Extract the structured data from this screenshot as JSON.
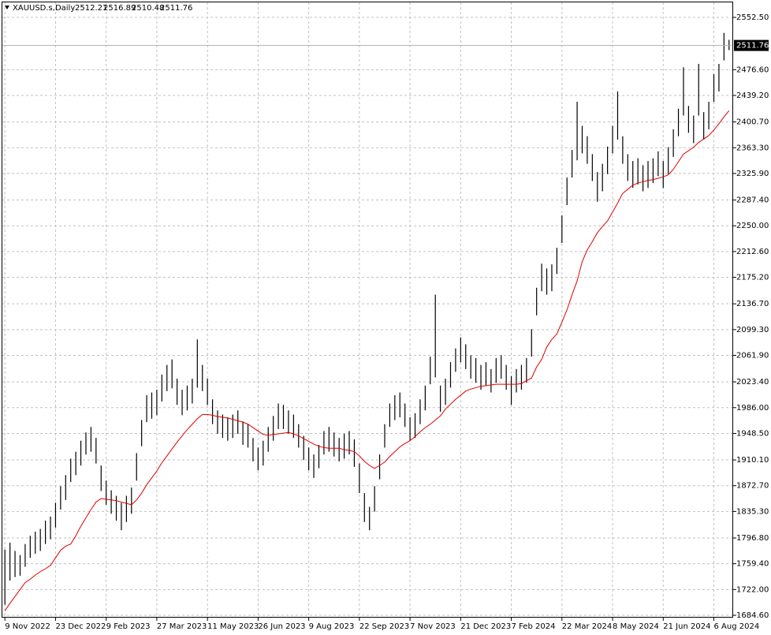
{
  "chart_data": {
    "type": "ohlc",
    "symbol": "XAUUSD.s,Daily",
    "ohlc": [
      2512.21,
      2516.89,
      2510.48,
      2511.76
    ],
    "current_price": 2511.76,
    "categories": [
      "9 Nov 2022",
      null,
      null,
      null,
      null,
      null,
      null,
      null,
      null,
      null,
      "23 Dec 2022",
      null,
      null,
      null,
      null,
      null,
      null,
      null,
      null,
      null,
      "9 Feb 2023",
      null,
      null,
      null,
      null,
      null,
      null,
      null,
      null,
      null,
      "27 Mar 2023",
      null,
      null,
      null,
      null,
      null,
      null,
      null,
      null,
      null,
      "11 May 2023",
      null,
      null,
      null,
      null,
      null,
      null,
      null,
      null,
      null,
      "26 Jun 2023",
      null,
      null,
      null,
      null,
      null,
      null,
      null,
      null,
      null,
      "9 Aug 2023",
      null,
      null,
      null,
      null,
      null,
      null,
      null,
      null,
      null,
      "22 Sep 2023",
      null,
      null,
      null,
      null,
      null,
      null,
      null,
      null,
      null,
      "7 Nov 2023",
      null,
      null,
      null,
      null,
      null,
      null,
      null,
      null,
      null,
      "21 Dec 2023",
      null,
      null,
      null,
      null,
      null,
      null,
      null,
      null,
      null,
      "7 Feb 2024",
      null,
      null,
      null,
      null,
      null,
      null,
      null,
      null,
      null,
      "22 Mar 2024",
      null,
      null,
      null,
      null,
      null,
      null,
      null,
      null,
      null,
      "8 May 2024",
      null,
      null,
      null,
      null,
      null,
      null,
      null,
      null,
      null,
      "21 Jun 2024",
      null,
      null,
      null,
      null,
      null,
      null,
      null,
      null,
      null,
      "6 Aug 2024",
      null,
      null,
      null
    ],
    "high": [
      1780,
      1790,
      1778,
      1772,
      1788,
      1800,
      1806,
      1810,
      1822,
      1828,
      1848,
      1872,
      1888,
      1912,
      1922,
      1938,
      1950,
      1958,
      1942,
      1902,
      1880,
      1866,
      1858,
      1848,
      1858,
      1870,
      1920,
      1968,
      2004,
      2008,
      2012,
      2034,
      2048,
      2056,
      2028,
      2012,
      2018,
      2028,
      2085,
      2048,
      2028,
      1998,
      1982,
      1976,
      1972,
      1976,
      1982,
      1966,
      1962,
      1942,
      1928,
      1938,
      1958,
      1974,
      1992,
      1990,
      1982,
      1976,
      1962,
      1945,
      1928,
      1918,
      1932,
      1952,
      1958,
      1950,
      1942,
      1948,
      1952,
      1940,
      1905,
      1862,
      1842,
      1872,
      1918,
      1962,
      1992,
      2004,
      2008,
      1992,
      1972,
      1978,
      1998,
      2018,
      2060,
      2150,
      2018,
      2028,
      2052,
      2072,
      2088,
      2078,
      2062,
      2058,
      2048,
      2052,
      2042,
      2058,
      2062,
      2048,
      2032,
      2042,
      2048,
      2058,
      2100,
      2160,
      2195,
      2188,
      2194,
      2218,
      2265,
      2320,
      2360,
      2430,
      2395,
      2380,
      2354,
      2328,
      2340,
      2365,
      2395,
      2445,
      2380,
      2354,
      2344,
      2348,
      2338,
      2344,
      2348,
      2358,
      2344,
      2364,
      2390,
      2420,
      2480,
      2424,
      2410,
      2485,
      2415,
      2430,
      2470,
      2485,
      2530,
      2520
    ],
    "low": [
      1700,
      1735,
      1740,
      1742,
      1755,
      1768,
      1774,
      1778,
      1788,
      1795,
      1812,
      1838,
      1852,
      1878,
      1888,
      1902,
      1918,
      1922,
      1905,
      1865,
      1845,
      1832,
      1822,
      1808,
      1820,
      1832,
      1880,
      1930,
      1965,
      1970,
      1975,
      1995,
      2010,
      2014,
      1990,
      1975,
      1982,
      1992,
      2015,
      2010,
      1990,
      1962,
      1948,
      1942,
      1938,
      1942,
      1948,
      1932,
      1928,
      1908,
      1895,
      1902,
      1922,
      1938,
      1955,
      1955,
      1948,
      1942,
      1928,
      1910,
      1895,
      1884,
      1898,
      1918,
      1922,
      1915,
      1908,
      1912,
      1918,
      1900,
      1862,
      1820,
      1808,
      1835,
      1882,
      1928,
      1958,
      1968,
      1972,
      1958,
      1938,
      1942,
      1962,
      1982,
      2020,
      2030,
      1980,
      1990,
      2015,
      2038,
      2052,
      2042,
      2028,
      2022,
      2012,
      2018,
      2008,
      2022,
      2028,
      2012,
      1990,
      2008,
      2012,
      2022,
      2060,
      2120,
      2155,
      2150,
      2155,
      2180,
      2225,
      2280,
      2320,
      2345,
      2355,
      2340,
      2315,
      2285,
      2300,
      2325,
      2355,
      2375,
      2340,
      2315,
      2305,
      2310,
      2300,
      2305,
      2312,
      2322,
      2305,
      2325,
      2350,
      2380,
      2410,
      2385,
      2370,
      2410,
      2375,
      2390,
      2430,
      2445,
      2490,
      2505
    ],
    "ma": [
      1691,
      1702,
      1712,
      1722,
      1732,
      1737,
      1743,
      1748,
      1752,
      1757,
      1768,
      1779,
      1785,
      1788,
      1800,
      1814,
      1826,
      1838,
      1849,
      1854,
      1853,
      1852,
      1851,
      1849,
      1847,
      1845,
      1852,
      1862,
      1874,
      1884,
      1894,
      1906,
      1916,
      1926,
      1936,
      1945,
      1954,
      1962,
      1970,
      1976,
      1976,
      1975,
      1973,
      1972,
      1971,
      1969,
      1967,
      1965,
      1962,
      1957,
      1952,
      1947,
      1946,
      1947,
      1948,
      1949,
      1950,
      1948,
      1945,
      1941,
      1937,
      1933,
      1930,
      1928,
      1927,
      1927,
      1927,
      1925,
      1924,
      1922,
      1916,
      1908,
      1902,
      1898,
      1902,
      1907,
      1915,
      1922,
      1929,
      1934,
      1938,
      1944,
      1951,
      1957,
      1962,
      1968,
      1974,
      1984,
      1991,
      1998,
      2004,
      2010,
      2013,
      2015,
      2017,
      2018,
      2019,
      2020,
      2020,
      2020,
      2020,
      2020,
      2021,
      2025,
      2029,
      2045,
      2056,
      2074,
      2085,
      2093,
      2110,
      2128,
      2150,
      2170,
      2198,
      2215,
      2227,
      2240,
      2249,
      2257,
      2270,
      2283,
      2297,
      2303,
      2309,
      2312,
      2314,
      2316,
      2317,
      2319,
      2321,
      2324,
      2332,
      2343,
      2354,
      2359,
      2364,
      2371,
      2376,
      2381,
      2389,
      2398,
      2408,
      2417
    ],
    "bar_color": "#000000",
    "ma_color": "#e00000",
    "ylim": [
      1682.3,
      2574.3
    ],
    "yticks": [
      {
        "value": 1684.6,
        "label": "1684.60"
      },
      {
        "value": 1722,
        "label": "1722.00"
      },
      {
        "value": 1759.4,
        "label": "1759.40"
      },
      {
        "value": 1796.8,
        "label": "1796.80"
      },
      {
        "value": 1835.3,
        "label": "1835.30"
      },
      {
        "value": 1872.7,
        "label": "1872.70"
      },
      {
        "value": 1910.1,
        "label": "1910.10"
      },
      {
        "value": 1948.5,
        "label": "1948.50"
      },
      {
        "value": 1986,
        "label": "1986.00"
      },
      {
        "value": 2023.4,
        "label": "2023.40"
      },
      {
        "value": 2061.9,
        "label": "2061.90"
      },
      {
        "value": 2099.3,
        "label": "2099.30"
      },
      {
        "value": 2136.7,
        "label": "2136.70"
      },
      {
        "value": 2175.2,
        "label": "2175.20"
      },
      {
        "value": 2212.6,
        "label": "2212.60"
      },
      {
        "value": 2250,
        "label": "2250.00"
      },
      {
        "value": 2287.4,
        "label": "2287.40"
      },
      {
        "value": 2325.9,
        "label": "2325.90"
      },
      {
        "value": 2363.3,
        "label": "2363.30"
      },
      {
        "value": 2400.7,
        "label": "2400.70"
      },
      {
        "value": 2439.2,
        "label": "2439.20"
      },
      {
        "value": 2476.6,
        "label": "2476.60"
      },
      {
        "value": 2552.5,
        "label": "2552.50"
      }
    ],
    "grid": true
  }
}
